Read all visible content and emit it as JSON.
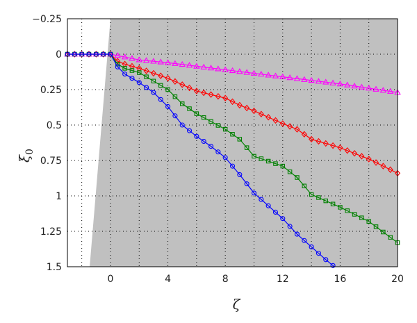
{
  "chart_data": {
    "type": "line",
    "xlabel": "ζ",
    "ylabel": "ξ",
    "ylabel_sub": "0",
    "xlim": [
      -3,
      20
    ],
    "ylim": [
      -0.25,
      1.5
    ],
    "y_axis_inverted": true,
    "grid": "dotted",
    "x_ticks": [
      0,
      4,
      8,
      12,
      16,
      20
    ],
    "x_tick_labels": [
      "0",
      "4",
      "8",
      "12",
      "16",
      "20"
    ],
    "y_ticks": [
      -0.25,
      0,
      0.25,
      0.5,
      0.75,
      1,
      1.25,
      1.5
    ],
    "y_tick_labels": [
      "−0.25",
      "0",
      "0.25",
      "0.5",
      "0.75",
      "1",
      "1.25",
      "1.5"
    ],
    "shaded_region": {
      "fill": "#c0c0c0",
      "boundary": [
        [
          0.0,
          -0.25
        ],
        [
          -1.45,
          1.5
        ]
      ]
    },
    "series": [
      {
        "color": "#ff00ff",
        "marker": "triangle",
        "points": [
          [
            -3,
            0
          ],
          [
            -2,
            0
          ],
          [
            -1,
            0
          ],
          [
            0,
            0
          ],
          [
            2,
            0.04
          ],
          [
            4,
            0.06
          ],
          [
            8,
            0.11
          ],
          [
            12,
            0.16
          ],
          [
            16,
            0.21
          ],
          [
            20,
            0.27
          ]
        ]
      },
      {
        "color": "#ff0000",
        "marker": "diamond",
        "points": [
          [
            -3,
            0
          ],
          [
            -2,
            0
          ],
          [
            -1,
            0
          ],
          [
            0,
            0
          ],
          [
            0.5,
            0.05
          ],
          [
            1,
            0.07
          ],
          [
            2,
            0.1
          ],
          [
            4,
            0.17
          ],
          [
            6,
            0.26
          ],
          [
            8,
            0.31
          ],
          [
            9,
            0.36
          ],
          [
            10,
            0.4
          ],
          [
            12,
            0.49
          ],
          [
            13,
            0.53
          ],
          [
            14,
            0.6
          ],
          [
            16,
            0.66
          ],
          [
            18,
            0.74
          ],
          [
            20,
            0.84
          ]
        ]
      },
      {
        "color": "#008000",
        "marker": "square",
        "points": [
          [
            -3,
            0
          ],
          [
            -2,
            0
          ],
          [
            -1,
            0
          ],
          [
            0,
            0
          ],
          [
            0.5,
            0.07
          ],
          [
            1,
            0.1
          ],
          [
            2,
            0.13
          ],
          [
            4,
            0.25
          ],
          [
            5,
            0.35
          ],
          [
            6,
            0.42
          ],
          [
            8,
            0.53
          ],
          [
            9,
            0.6
          ],
          [
            10,
            0.72
          ],
          [
            12,
            0.79
          ],
          [
            13,
            0.87
          ],
          [
            14,
            0.99
          ],
          [
            16,
            1.08
          ],
          [
            18,
            1.18
          ],
          [
            20,
            1.33
          ]
        ]
      },
      {
        "color": "#0000ff",
        "marker": "circle",
        "points": [
          [
            -3,
            0
          ],
          [
            -2,
            0
          ],
          [
            -1,
            0
          ],
          [
            0,
            0
          ],
          [
            0.5,
            0.09
          ],
          [
            1,
            0.14
          ],
          [
            2,
            0.2
          ],
          [
            3,
            0.27
          ],
          [
            4,
            0.37
          ],
          [
            5,
            0.5
          ],
          [
            6,
            0.58
          ],
          [
            7,
            0.65
          ],
          [
            8,
            0.73
          ],
          [
            9,
            0.85
          ],
          [
            10,
            0.98
          ],
          [
            11,
            1.07
          ],
          [
            12,
            1.16
          ],
          [
            13,
            1.27
          ],
          [
            14,
            1.36
          ],
          [
            15,
            1.45
          ],
          [
            15.6,
            1.5
          ]
        ]
      }
    ]
  }
}
